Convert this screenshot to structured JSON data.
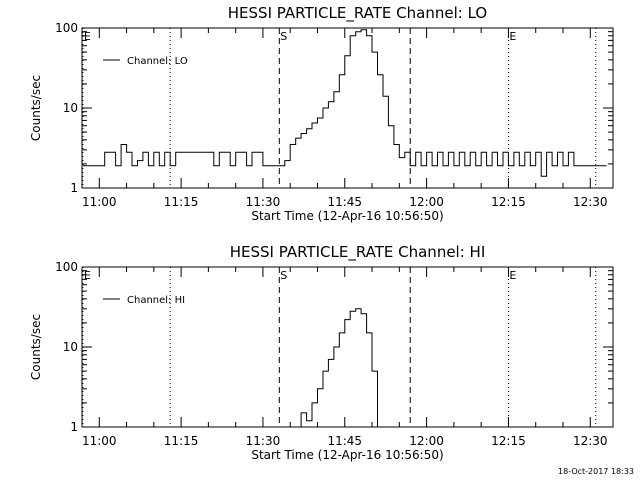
{
  "footer": {
    "timestamp": "18-Oct-2017 18:33"
  },
  "chart_data": [
    {
      "type": "line",
      "title": "HESSI PARTICLE_RATE Channel: LO",
      "xlabel": "Start Time (12-Apr-16 10:56:50)",
      "ylabel": "Counts/sec",
      "y_scale": "log",
      "ylim": [
        1,
        100
      ],
      "xlim": [
        "10:56:50",
        "12:34:10"
      ],
      "x_ticks": [
        "11:00",
        "11:15",
        "11:30",
        "11:45",
        "12:00",
        "12:15",
        "12:30"
      ],
      "y_ticks": [
        "1",
        "10",
        "100"
      ],
      "grid": false,
      "legend_position": "top-left",
      "series": [
        {
          "name": "Channel: LO",
          "x": [
            "10:57",
            "11:00",
            "11:01",
            "11:03",
            "11:04",
            "11:05",
            "11:06",
            "11:07",
            "11:08",
            "11:09",
            "11:10",
            "11:11",
            "11:12",
            "11:13",
            "11:14",
            "11:16",
            "11:18",
            "11:20",
            "11:21",
            "11:22",
            "11:24",
            "11:25",
            "11:27",
            "11:28",
            "11:30",
            "11:31",
            "11:32",
            "11:33",
            "11:34",
            "11:35",
            "11:36",
            "11:37",
            "11:38",
            "11:39",
            "11:40",
            "11:41",
            "11:42",
            "11:43",
            "11:44",
            "11:45",
            "11:46",
            "11:47",
            "11:48",
            "11:49",
            "11:50",
            "11:51",
            "11:52",
            "11:53",
            "11:54",
            "11:55",
            "11:56",
            "11:57",
            "11:58",
            "11:59",
            "12:00",
            "12:01",
            "12:02",
            "12:03",
            "12:04",
            "12:05",
            "12:06",
            "12:07",
            "12:08",
            "12:09",
            "12:10",
            "12:11",
            "12:12",
            "12:13",
            "12:14",
            "12:15",
            "12:16",
            "12:17",
            "12:18",
            "12:19",
            "12:20",
            "12:21",
            "12:22",
            "12:23",
            "12:24",
            "12:25",
            "12:26",
            "12:27",
            "12:28",
            "12:29",
            "12:30",
            "12:31",
            "12:32",
            "12:33"
          ],
          "y": [
            1.9,
            1.9,
            2.8,
            1.9,
            3.5,
            2.8,
            1.9,
            2.2,
            2.8,
            1.9,
            2.8,
            1.9,
            2.8,
            1.9,
            2.8,
            2.8,
            2.8,
            2.8,
            1.9,
            2.8,
            1.9,
            2.8,
            1.9,
            2.8,
            1.9,
            1.9,
            1.9,
            1.9,
            2.2,
            3.5,
            4.2,
            4.8,
            5.5,
            6.5,
            7.5,
            10,
            12,
            16,
            26,
            45,
            80,
            90,
            95,
            80,
            50,
            26,
            14,
            6,
            3.5,
            2.4,
            2.8,
            1.9,
            2.8,
            1.9,
            2.8,
            1.9,
            2.8,
            1.9,
            2.8,
            1.9,
            2.8,
            1.9,
            2.8,
            1.9,
            2.8,
            1.9,
            2.8,
            1.9,
            2.8,
            1.9,
            2.8,
            1.9,
            2.8,
            1.9,
            2.8,
            1.4,
            2.8,
            1.9,
            2.8,
            1.9,
            2.8,
            1.9,
            1.9,
            1.9,
            1.9,
            1.9,
            1.9,
            1.9
          ]
        }
      ],
      "annotations": [
        {
          "label": "E",
          "x": "10:57",
          "line": "dotted"
        },
        {
          "label": "",
          "x": "11:13",
          "line": "dotted"
        },
        {
          "label": "S",
          "x": "11:33",
          "line": "dashed"
        },
        {
          "label": "",
          "x": "11:57",
          "line": "dashed"
        },
        {
          "label": "E",
          "x": "12:15",
          "line": "dotted"
        },
        {
          "label": "",
          "x": "12:31",
          "line": "dotted"
        }
      ]
    },
    {
      "type": "line",
      "title": "HESSI PARTICLE_RATE Channel: HI",
      "xlabel": "Start Time (12-Apr-16 10:56:50)",
      "ylabel": "Counts/sec",
      "y_scale": "log",
      "ylim": [
        1,
        100
      ],
      "xlim": [
        "10:56:50",
        "12:34:10"
      ],
      "x_ticks": [
        "11:00",
        "11:15",
        "11:30",
        "11:45",
        "12:00",
        "12:15",
        "12:30"
      ],
      "y_ticks": [
        "1",
        "10",
        "100"
      ],
      "grid": false,
      "legend_position": "top-left",
      "series": [
        {
          "name": "Channel: HI",
          "x": [
            "11:36",
            "11:37",
            "11:38",
            "11:39",
            "11:40",
            "11:41",
            "11:42",
            "11:43",
            "11:44",
            "11:45",
            "11:46",
            "11:47",
            "11:48",
            "11:49",
            "11:50",
            "11:51"
          ],
          "y": [
            1,
            1.5,
            1.2,
            2,
            3,
            5,
            7,
            10,
            15,
            22,
            28,
            30,
            26,
            15,
            5,
            1
          ]
        }
      ],
      "annotations": [
        {
          "label": "E",
          "x": "10:57",
          "line": "dotted"
        },
        {
          "label": "",
          "x": "11:13",
          "line": "dotted"
        },
        {
          "label": "S",
          "x": "11:33",
          "line": "dashed"
        },
        {
          "label": "",
          "x": "11:57",
          "line": "dashed"
        },
        {
          "label": "E",
          "x": "12:15",
          "line": "dotted"
        },
        {
          "label": "",
          "x": "12:31",
          "line": "dotted"
        }
      ]
    }
  ]
}
